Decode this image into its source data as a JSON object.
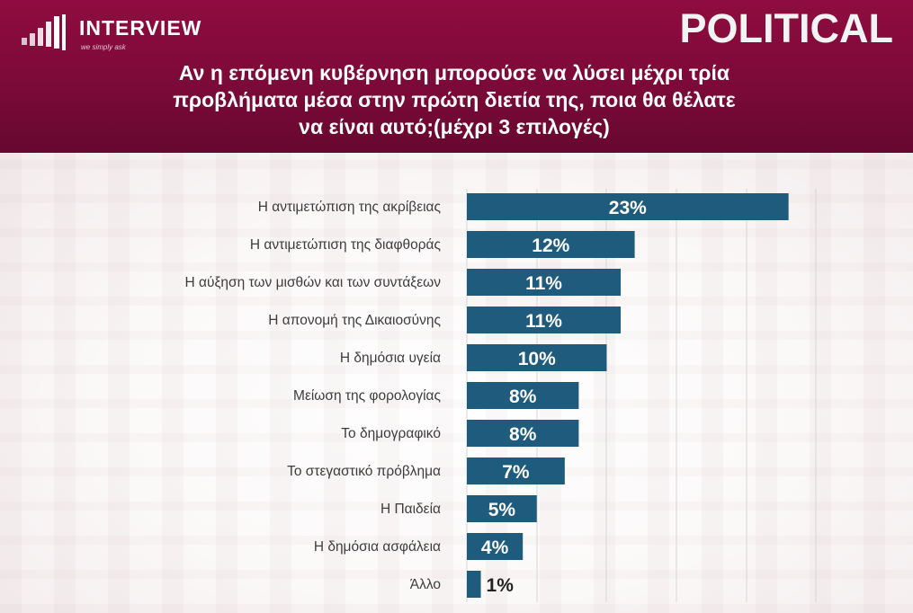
{
  "header": {
    "logo_text": "INTERVIEW",
    "logo_tagline": "we simply ask",
    "brand": "POLITICAL",
    "question_lines": [
      "Αν η επόμενη κυβέρνηση μπορούσε να λύσει μέχρι τρία",
      "προβλήματα μέσα στην πρώτη διετία της, ποια θα θέλατε",
      "να είναι αυτό;(μέχρι 3 επιλογές)"
    ]
  },
  "colors": {
    "header_bg": "#7c0a38",
    "bar": "#1f5b7d",
    "bar_label_inside": "#ffffff",
    "bar_label_outside": "#222222"
  },
  "chart_data": {
    "type": "bar",
    "orientation": "horizontal",
    "categories": [
      "Η αντιμετώπιση της ακρίβειας",
      "Η αντιμετώπιση της διαφθοράς",
      "Η αύξηση των μισθών και των συντάξεων",
      "Η απονομή της Δικαιοσύνης",
      "Η δημόσια υγεία",
      "Μείωση της φορολογίας",
      "Το δημογραφικό",
      "Το στεγαστικό πρόβλημα",
      "Η Παιδεία",
      "Η δημόσια ασφάλεια",
      "Άλλο"
    ],
    "values": [
      23,
      12,
      11,
      11,
      10,
      8,
      8,
      7,
      5,
      4,
      1
    ],
    "value_labels": [
      "23%",
      "12%",
      "11%",
      "11%",
      "10%",
      "8%",
      "8%",
      "7%",
      "5%",
      "4%",
      "1%"
    ],
    "xlim": [
      0,
      25
    ],
    "grid": true
  }
}
